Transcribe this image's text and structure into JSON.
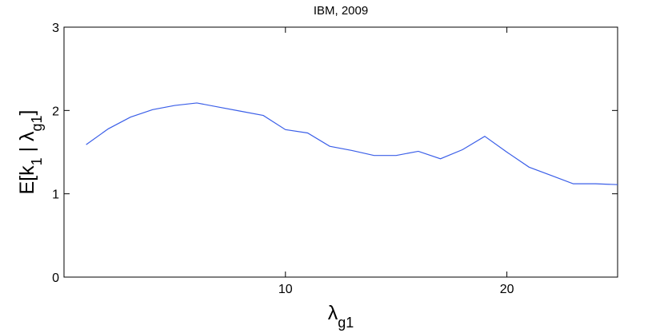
{
  "chart_data": {
    "type": "line",
    "title": "IBM, 2009",
    "xlabel": [
      {
        "text": "λ",
        "sub": false
      },
      {
        "text": "g1",
        "sub": true
      }
    ],
    "ylabel": [
      {
        "text": "E[k",
        "sub": false
      },
      {
        "text": "1",
        "sub": true
      },
      {
        "text": " | λ",
        "sub": false
      },
      {
        "text": "g1",
        "sub": true
      },
      {
        "text": "]",
        "sub": false
      }
    ],
    "x": [
      1,
      2,
      3,
      4,
      5,
      6,
      7,
      8,
      9,
      10,
      11,
      12,
      13,
      14,
      15,
      16,
      17,
      18,
      19,
      20,
      21,
      22,
      23,
      24,
      25
    ],
    "series": [
      {
        "color": "#3a5ee8",
        "values": [
          1.59,
          1.78,
          1.92,
          2.01,
          2.06,
          2.09,
          2.04,
          1.99,
          1.94,
          1.77,
          1.73,
          1.57,
          1.52,
          1.46,
          1.46,
          1.51,
          1.42,
          1.53,
          1.69,
          1.5,
          1.32,
          1.22,
          1.12,
          1.12,
          1.11
        ]
      }
    ],
    "xlim": [
      0,
      25
    ],
    "ylim": [
      0,
      3
    ],
    "xticks": [
      10,
      20
    ],
    "yticks": [
      0,
      1,
      2,
      3
    ],
    "grid": false
  }
}
